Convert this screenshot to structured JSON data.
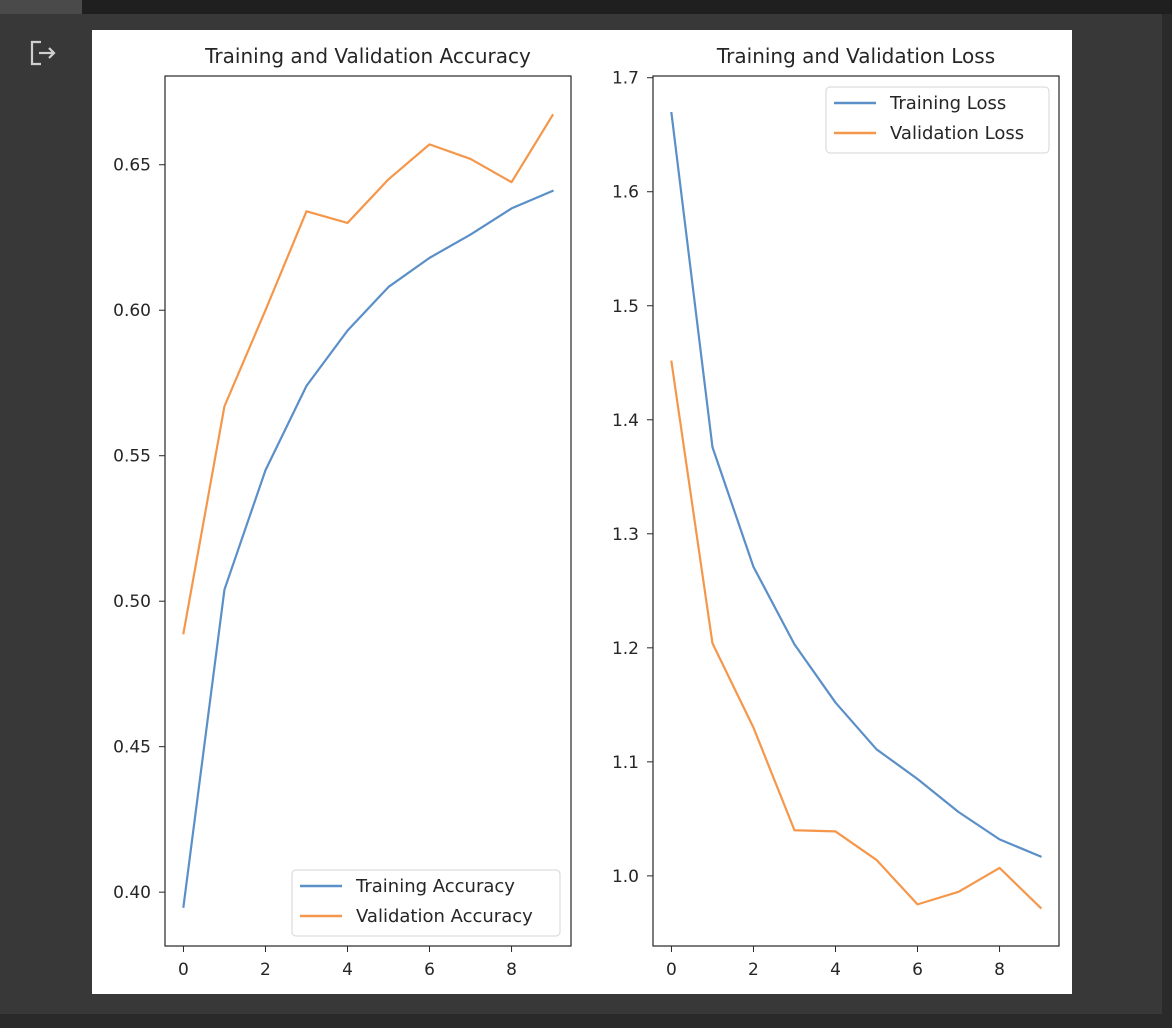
{
  "output": {
    "icon": "output-redirect-icon"
  },
  "chart_data": [
    {
      "type": "line",
      "title": "Training and Validation Accuracy",
      "xlabel": "",
      "ylabel": "",
      "xlim": [
        -0.45,
        9.45
      ],
      "ylim": [
        0.3815,
        0.6805
      ],
      "xticks": [
        "0",
        "2",
        "4",
        "6",
        "8"
      ],
      "yticks": [
        "0.40",
        "0.45",
        "0.50",
        "0.55",
        "0.60",
        "0.65"
      ],
      "x": [
        0,
        1,
        2,
        3,
        4,
        5,
        6,
        7,
        8,
        9
      ],
      "series": [
        {
          "name": "Training Accuracy",
          "color": "#5a8fc8",
          "values": [
            0.395,
            0.504,
            0.545,
            0.574,
            0.593,
            0.608,
            0.618,
            0.626,
            0.635,
            0.641
          ]
        },
        {
          "name": "Validation Accuracy",
          "color": "#f5974b",
          "values": [
            0.489,
            0.567,
            0.6,
            0.634,
            0.63,
            0.645,
            0.657,
            0.652,
            0.644,
            0.667
          ]
        }
      ],
      "legend": "lower-right",
      "grid": false
    },
    {
      "type": "line",
      "title": "Training and Validation Loss",
      "xlabel": "",
      "ylabel": "",
      "xlim": [
        -0.45,
        9.45
      ],
      "ylim": [
        0.9385,
        1.7015
      ],
      "xticks": [
        "0",
        "2",
        "4",
        "6",
        "8"
      ],
      "yticks": [
        "1.0",
        "1.1",
        "1.2",
        "1.3",
        "1.4",
        "1.5",
        "1.6",
        "1.7"
      ],
      "x": [
        0,
        1,
        2,
        3,
        4,
        5,
        6,
        7,
        8,
        9
      ],
      "series": [
        {
          "name": "Training Loss",
          "color": "#5a8fc8",
          "values": [
            1.669,
            1.376,
            1.271,
            1.203,
            1.152,
            1.111,
            1.085,
            1.056,
            1.032,
            1.017
          ]
        },
        {
          "name": "Validation Loss",
          "color": "#f5974b",
          "values": [
            1.451,
            1.204,
            1.13,
            1.04,
            1.039,
            1.014,
            0.975,
            0.986,
            1.007,
            0.972
          ]
        }
      ],
      "legend": "upper-right",
      "grid": false
    }
  ]
}
